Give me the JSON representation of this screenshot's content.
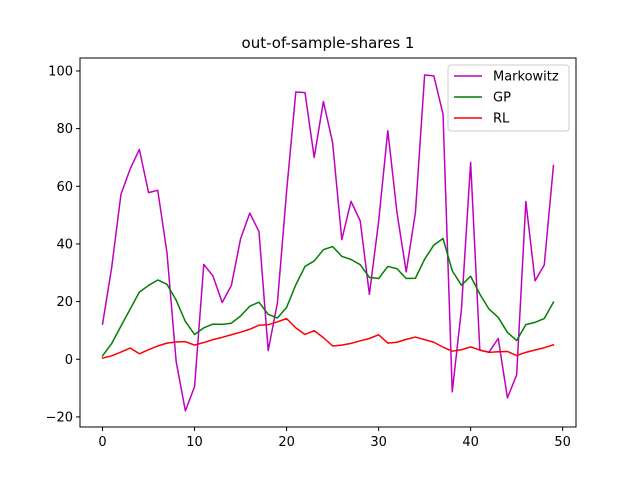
{
  "chart_data": {
    "type": "line",
    "title": "out-of-sample-shares 1",
    "xlabel": "",
    "ylabel": "",
    "xlim": [
      -2.45,
      51.45
    ],
    "ylim": [
      -23.5,
      104.5
    ],
    "xticks": [
      0,
      10,
      20,
      30,
      40,
      50
    ],
    "yticks": [
      -20,
      0,
      20,
      40,
      60,
      80,
      100
    ],
    "grid": false,
    "legend_position": "top-right",
    "x": [
      0,
      1,
      2,
      3,
      4,
      5,
      6,
      7,
      8,
      9,
      10,
      11,
      12,
      13,
      14,
      15,
      16,
      17,
      18,
      19,
      20,
      21,
      22,
      23,
      24,
      25,
      26,
      27,
      28,
      29,
      30,
      31,
      32,
      33,
      34,
      35,
      36,
      37,
      38,
      39,
      40,
      41,
      42,
      43,
      44,
      45,
      46,
      47,
      48,
      49
    ],
    "series": [
      {
        "name": "Markowitz",
        "color": "#bf00bf",
        "values": [
          12.2,
          32.0,
          57.2,
          66.0,
          72.8,
          57.8,
          58.6,
          37.0,
          -0.8,
          -17.9,
          -9.5,
          32.9,
          28.9,
          19.7,
          25.6,
          41.8,
          50.7,
          44.3,
          3.0,
          19.5,
          58.2,
          92.7,
          92.5,
          70.0,
          89.4,
          75.2,
          41.5,
          54.8,
          48.0,
          22.5,
          47.8,
          79.3,
          50.8,
          30.3,
          50.9,
          98.6,
          98.3,
          85.0,
          -11.3,
          17.3,
          68.3,
          3.1,
          2.5,
          7.2,
          -13.4,
          -5.4,
          54.7,
          27.2,
          32.7,
          67.2
        ]
      },
      {
        "name": "GP",
        "color": "#008000",
        "values": [
          1.2,
          5.5,
          11.5,
          17.4,
          23.3,
          25.6,
          27.5,
          26.0,
          20.5,
          13.1,
          8.6,
          10.9,
          12.2,
          12.1,
          12.5,
          15.0,
          18.4,
          19.8,
          15.6,
          14.3,
          18.0,
          25.8,
          32.2,
          34.1,
          38.0,
          39.1,
          35.7,
          34.6,
          32.8,
          28.4,
          28.0,
          32.2,
          31.4,
          28.0,
          28.1,
          34.7,
          39.6,
          41.9,
          30.7,
          25.7,
          28.8,
          22.6,
          17.4,
          14.5,
          9.3,
          6.5,
          12.0,
          12.8,
          14.1,
          19.8
        ]
      },
      {
        "name": "RL",
        "color": "#ff0000",
        "values": [
          0.4,
          1.2,
          2.5,
          3.9,
          1.9,
          3.3,
          4.6,
          5.6,
          6.0,
          6.1,
          4.9,
          5.8,
          6.8,
          7.6,
          8.5,
          9.4,
          10.4,
          11.8,
          12.0,
          13.0,
          14.1,
          10.9,
          8.6,
          9.9,
          7.5,
          4.6,
          4.9,
          5.5,
          6.4,
          7.2,
          8.5,
          5.6,
          5.9,
          6.9,
          7.7,
          6.8,
          5.9,
          4.2,
          2.8,
          3.3,
          4.3,
          3.2,
          2.4,
          2.6,
          2.7,
          1.3,
          2.4,
          3.2,
          4.0,
          5.0
        ]
      }
    ]
  }
}
